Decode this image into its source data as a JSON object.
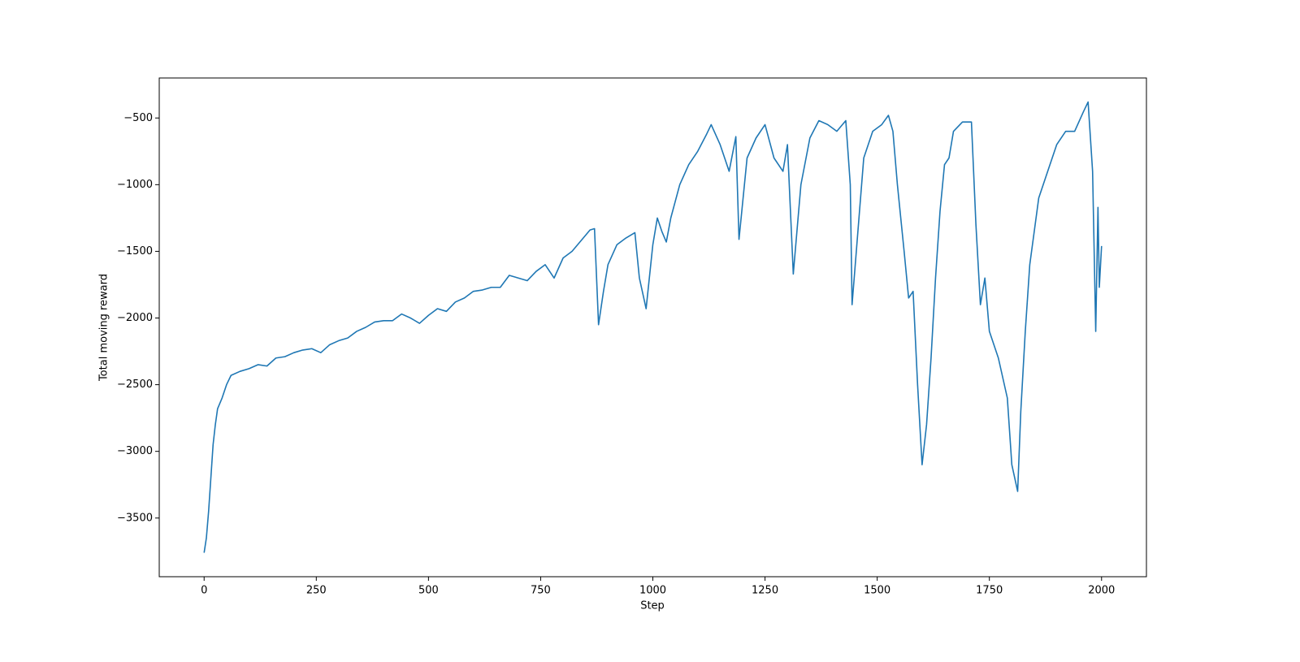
{
  "chart_data": {
    "type": "line",
    "x_label": "Step",
    "y_label": "Total moving reward",
    "x": [
      0,
      5,
      10,
      15,
      20,
      25,
      30,
      40,
      50,
      60,
      80,
      100,
      120,
      140,
      160,
      180,
      200,
      220,
      240,
      260,
      280,
      300,
      320,
      340,
      360,
      380,
      400,
      420,
      440,
      460,
      480,
      500,
      520,
      540,
      560,
      580,
      600,
      620,
      640,
      660,
      680,
      700,
      720,
      740,
      760,
      780,
      800,
      820,
      840,
      860,
      870,
      879,
      890,
      900,
      920,
      940,
      960,
      970,
      985,
      1000,
      1010,
      1020,
      1030,
      1040,
      1060,
      1080,
      1100,
      1120,
      1130,
      1150,
      1170,
      1185,
      1192,
      1210,
      1230,
      1250,
      1270,
      1290,
      1300,
      1313,
      1330,
      1350,
      1370,
      1390,
      1410,
      1430,
      1440,
      1444,
      1470,
      1490,
      1510,
      1525,
      1535,
      1545,
      1560,
      1570,
      1580,
      1590,
      1600,
      1610,
      1620,
      1630,
      1640,
      1650,
      1660,
      1670,
      1690,
      1710,
      1720,
      1730,
      1740,
      1750,
      1770,
      1790,
      1800,
      1813,
      1820,
      1830,
      1840,
      1860,
      1880,
      1900,
      1920,
      1940,
      1960,
      1970,
      1980,
      1987,
      1992,
      1995,
      2000
    ],
    "series": [
      {
        "color": "#1f77b4",
        "values": [
          -3760,
          -3650,
          -3450,
          -3200,
          -2950,
          -2800,
          -2680,
          -2600,
          -2500,
          -2430,
          -2400,
          -2380,
          -2350,
          -2360,
          -2300,
          -2290,
          -2260,
          -2240,
          -2230,
          -2260,
          -2200,
          -2170,
          -2150,
          -2100,
          -2070,
          -2030,
          -2020,
          -2020,
          -1970,
          -2000,
          -2040,
          -1980,
          -1930,
          -1950,
          -1880,
          -1850,
          -1800,
          -1790,
          -1770,
          -1770,
          -1680,
          -1700,
          -1720,
          -1650,
          -1600,
          -1700,
          -1550,
          -1500,
          -1420,
          -1340,
          -1330,
          -2050,
          -1800,
          -1600,
          -1450,
          -1400,
          -1360,
          -1700,
          -1930,
          -1450,
          -1250,
          -1350,
          -1430,
          -1250,
          -1000,
          -850,
          -750,
          -620,
          -550,
          -700,
          -900,
          -640,
          -1410,
          -800,
          -650,
          -550,
          -800,
          -900,
          -700,
          -1670,
          -1000,
          -650,
          -520,
          -550,
          -600,
          -520,
          -1000,
          -1900,
          -800,
          -600,
          -550,
          -480,
          -600,
          -1000,
          -1500,
          -1850,
          -1800,
          -2500,
          -3100,
          -2800,
          -2300,
          -1700,
          -1200,
          -850,
          -800,
          -600,
          -530,
          -530,
          -1300,
          -1900,
          -1700,
          -2100,
          -2300,
          -2600,
          -3100,
          -3300,
          -2700,
          -2100,
          -1600,
          -1100,
          -900,
          -700,
          -600,
          -600,
          -450,
          -380,
          -900,
          -2100,
          -1170,
          -1770,
          -1460
        ]
      }
    ],
    "xlim": [
      -100,
      2100
    ],
    "ylim": [
      -3940,
      -200
    ],
    "xticks": [
      0,
      250,
      500,
      750,
      1000,
      1250,
      1500,
      1750,
      2000
    ],
    "yticks": [
      {
        "value": -3500,
        "label": "−3500"
      },
      {
        "value": -3000,
        "label": "−3000"
      },
      {
        "value": -2500,
        "label": "−2500"
      },
      {
        "value": -2000,
        "label": "−2000"
      },
      {
        "value": -1500,
        "label": "−1500"
      },
      {
        "value": -1000,
        "label": "−1000"
      },
      {
        "value": -500,
        "label": "−500"
      }
    ]
  }
}
